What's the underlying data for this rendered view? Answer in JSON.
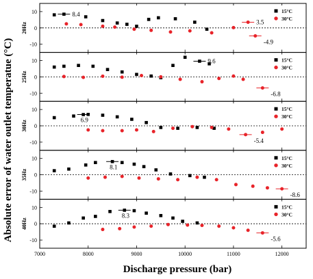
{
  "chart_data": {
    "type": "scatter",
    "ylabel": "Absolute error of water outlet temperatue (°C)",
    "xlabel": "Discharge pressure (bar)",
    "xlim": [
      7000,
      12500
    ],
    "x_ticks": [
      "7000",
      "8000",
      "9000",
      "10000",
      "11000",
      "12000"
    ],
    "y_ticks": [
      "10",
      "0",
      "-10"
    ],
    "legend_position": "top-right",
    "series_names": [
      "15°C",
      "30°C"
    ],
    "colors": {
      "15°C": "#000000",
      "30°C": "#e8242a"
    },
    "reference_line": {
      "y": 0,
      "style": "dashed"
    },
    "panels": [
      {
        "label": "20Hz",
        "ylim": [
          -15,
          15
        ],
        "series": [
          {
            "name": "15°C",
            "x": [
              7300,
              7500,
              7950,
              8300,
              8600,
              8800,
              9000,
              9250,
              9450,
              9800,
              10200,
              10450
            ],
            "y": [
              8.0,
              8.4,
              6.8,
              4.5,
              3.0,
              2.2,
              1.0,
              5.2,
              6.2,
              5.6,
              3.5,
              -0.8
            ]
          },
          {
            "name": "30°C",
            "x": [
              7550,
              7850,
              8300,
              8550,
              8950,
              9300,
              9700,
              10100,
              10550,
              11000,
              11300,
              11450
            ],
            "y": [
              2.5,
              2.0,
              1.0,
              0.5,
              -0.8,
              -1.5,
              -2.5,
              -1.8,
              -3.0,
              0.2,
              3.5,
              -4.9
            ]
          }
        ],
        "annotations": [
          "8.4",
          "3.5",
          "-4.9"
        ]
      },
      {
        "label": "25Hz",
        "ylim": [
          -15,
          15
        ],
        "series": [
          {
            "name": "15°C",
            "x": [
              7300,
              7500,
              7800,
              8100,
              8400,
              8700,
              9000,
              9300,
              9500,
              9750,
              10000,
              10300,
              10500
            ],
            "y": [
              6.0,
              6.5,
              7.0,
              6.5,
              4.5,
              3.0,
              1.5,
              0.5,
              -0.5,
              7.0,
              12.0,
              9.6,
              8.0
            ]
          },
          {
            "name": "30°C",
            "x": [
              7500,
              7900,
              8300,
              8700,
              9100,
              9500,
              9900,
              10350,
              10700,
              11000,
              11200,
              11600
            ],
            "y": [
              0.2,
              -0.3,
              0.4,
              -0.2,
              0.8,
              0.0,
              -1.5,
              -3.0,
              -1.0,
              0.5,
              -1.5,
              -6.8
            ]
          }
        ],
        "annotations": [
          "9.6",
          "-6.8"
        ]
      },
      {
        "label": "30Hz",
        "ylim": [
          -15,
          15
        ],
        "series": [
          {
            "name": "15°C",
            "x": [
              7300,
              7700,
              7900,
              8000,
              8300,
              8600,
              8900,
              9200,
              9500,
              9850,
              10250,
              10600
            ],
            "y": [
              5.0,
              6.0,
              6.9,
              7.0,
              6.5,
              5.5,
              4.0,
              2.0,
              -1.0,
              -1.5,
              -1.0,
              -1.5
            ]
          },
          {
            "name": "30°C",
            "x": [
              8000,
              8300,
              8700,
              9000,
              9350,
              9750,
              10150,
              10550,
              10900,
              11250,
              11600,
              12000
            ],
            "y": [
              -2.5,
              -3.0,
              -3.0,
              -2.5,
              -3.5,
              -1.5,
              -0.5,
              -1.0,
              -2.0,
              -5.4,
              -4.0,
              -2.0
            ]
          }
        ],
        "annotations": [
          "6.9",
          "-5.4"
        ]
      },
      {
        "label": "35Hz",
        "ylim": [
          -15,
          15
        ],
        "series": [
          {
            "name": "15°C",
            "x": [
              7300,
              7600,
              7950,
              8150,
              8500,
              8700,
              8950,
              9150,
              9400,
              9700,
              10100,
              10400
            ],
            "y": [
              2.5,
              3.5,
              6.0,
              7.5,
              8.1,
              7.5,
              6.5,
              5.0,
              3.0,
              0.5,
              -0.5,
              -1.5
            ]
          },
          {
            "name": "30°C",
            "x": [
              8000,
              8350,
              8700,
              9050,
              9450,
              9850,
              10250,
              10650,
              11050,
              11400,
              11700,
              12000
            ],
            "y": [
              -2.0,
              -1.5,
              -1.0,
              -2.0,
              -2.5,
              -3.0,
              -1.5,
              -3.0,
              -6.0,
              -7.0,
              -8.0,
              -8.6
            ]
          }
        ],
        "annotations": [
          "8.1",
          "-8.6"
        ]
      },
      {
        "label": "40Hz",
        "ylim": [
          -15,
          15
        ],
        "series": [
          {
            "name": "15°C",
            "x": [
              7300,
              7600,
              7900,
              8150,
              8450,
              8750,
              8950,
              9200,
              9500,
              9750,
              9950,
              10250
            ],
            "y": [
              -1.5,
              0.5,
              3.5,
              4.5,
              7.5,
              8.3,
              8.0,
              6.5,
              5.0,
              3.5,
              1.5,
              0.5
            ]
          },
          {
            "name": "30°C",
            "x": [
              8300,
              8650,
              8950,
              9300,
              9650,
              10050,
              10350,
              10700,
              11000,
              11300,
              11600
            ],
            "y": [
              -3.5,
              -3.0,
              -2.0,
              -1.5,
              -0.5,
              -0.8,
              -1.0,
              -1.5,
              -2.5,
              -4.0,
              -5.6
            ]
          }
        ],
        "annotations": [
          "8.3",
          "-5.6"
        ]
      }
    ]
  }
}
